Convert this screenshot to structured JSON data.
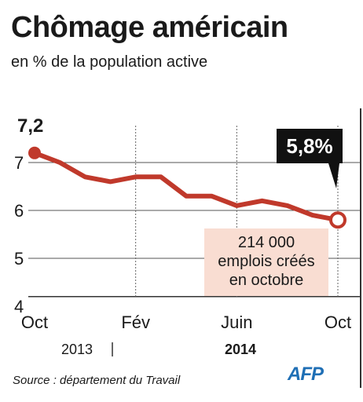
{
  "title": "Chômage américain",
  "subtitle": "en % de la population active",
  "source": "Source : département du Travail",
  "logo": "AFP",
  "colors": {
    "line": "#c0392b",
    "annotation_box": "#f9ddd2",
    "callout_bg": "#111111",
    "logo": "#1f6fb5"
  },
  "chart_data": {
    "type": "line",
    "y_ticks": [
      "7",
      "6",
      "5",
      "4"
    ],
    "ylim": [
      4,
      7.5
    ],
    "x_tick_labels": [
      "Oct",
      "Fév",
      "Juin",
      "Oct"
    ],
    "year_labels": [
      "2013",
      "2014"
    ],
    "series": [
      {
        "x": [
          "Oct 2013",
          "Nov 2013",
          "Déc 2013",
          "Jan 2014",
          "Fév 2014",
          "Mar 2014",
          "Avr 2014",
          "Mai 2014",
          "Juin 2014",
          "Juil 2014",
          "Août 2014",
          "Sep 2014",
          "Oct 2014"
        ],
        "values": [
          7.2,
          7.0,
          6.7,
          6.6,
          6.7,
          6.7,
          6.3,
          6.3,
          6.1,
          6.2,
          6.1,
          5.9,
          5.8
        ]
      }
    ],
    "first_value_label": "7,2",
    "last_value_label": "5,8%",
    "annotation": [
      "214 000",
      "emplois créés",
      "en octobre"
    ]
  }
}
